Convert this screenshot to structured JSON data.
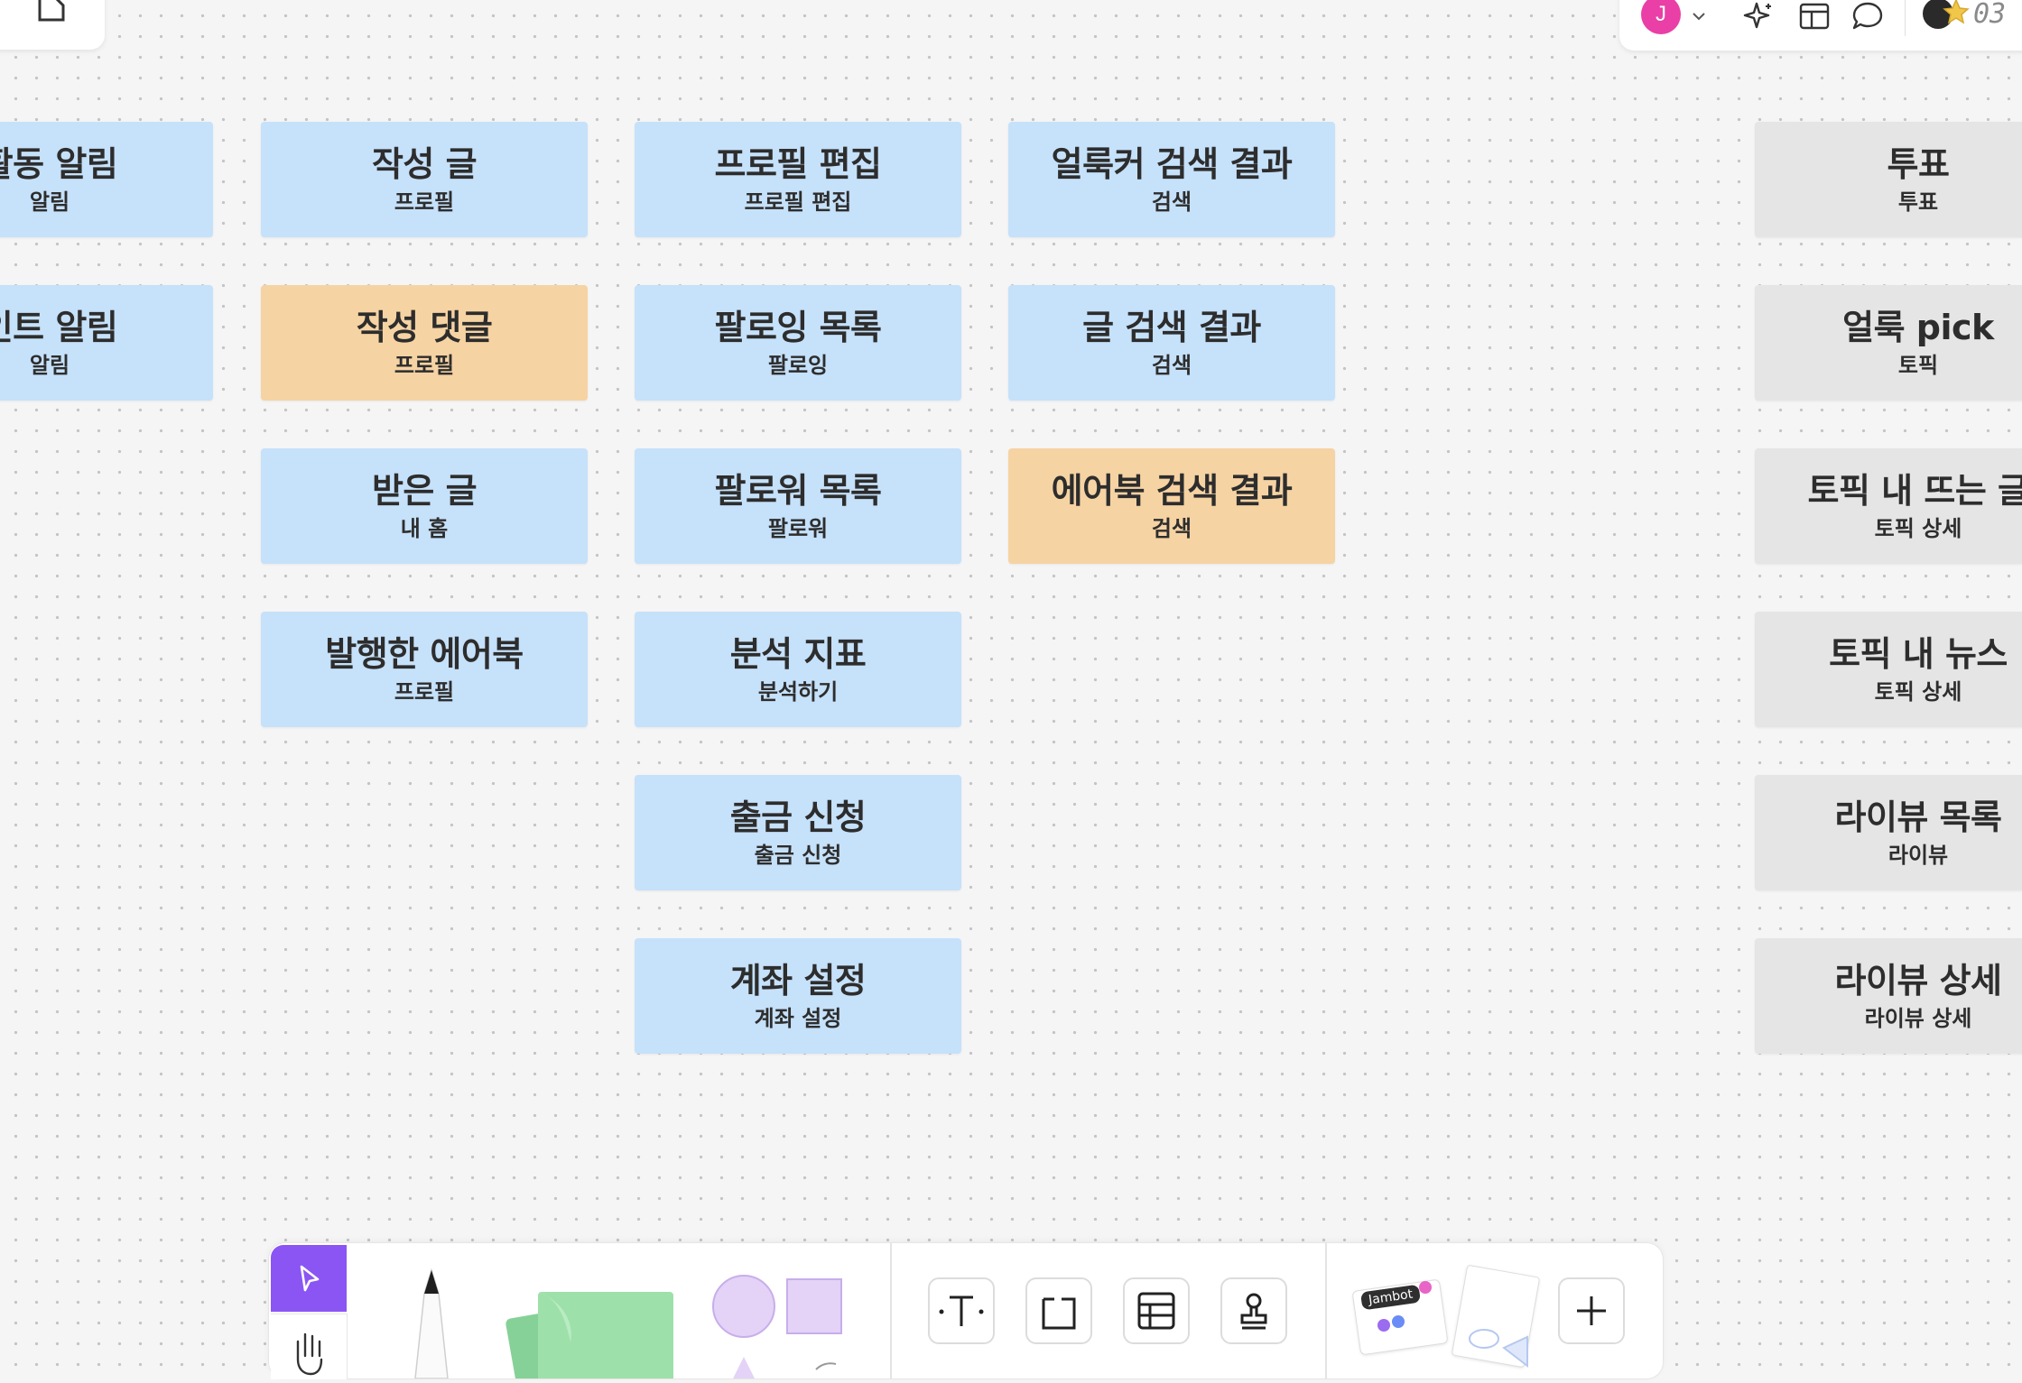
{
  "board": {
    "stickies": [
      {
        "id": "activity-alert",
        "title": "활동 알림",
        "sub": "알림",
        "color": "blue"
      },
      {
        "id": "point-alert",
        "title": "인트 알림",
        "sub": "알림",
        "color": "blue"
      },
      {
        "id": "written-post",
        "title": "작성 글",
        "sub": "프로필",
        "color": "blue"
      },
      {
        "id": "written-comment",
        "title": "작성 댓글",
        "sub": "프로필",
        "color": "orange"
      },
      {
        "id": "received-post",
        "title": "받은 글",
        "sub": "내 홈",
        "color": "blue"
      },
      {
        "id": "published-airbook",
        "title": "발행한 에어북",
        "sub": "프로필",
        "color": "blue"
      },
      {
        "id": "profile-edit",
        "title": "프로필 편집",
        "sub": "프로필 편집",
        "color": "blue"
      },
      {
        "id": "following-list",
        "title": "팔로잉 목록",
        "sub": "팔로잉",
        "color": "blue"
      },
      {
        "id": "follower-list",
        "title": "팔로워 목록",
        "sub": "팔로워",
        "color": "blue"
      },
      {
        "id": "analytics",
        "title": "분석 지표",
        "sub": "분석하기",
        "color": "blue"
      },
      {
        "id": "withdraw-request",
        "title": "출금 신청",
        "sub": "출금 신청",
        "color": "blue"
      },
      {
        "id": "account-settings",
        "title": "계좌 설정",
        "sub": "계좌 설정",
        "color": "blue"
      },
      {
        "id": "ollooker-search",
        "title": "얼룩커 검색 결과",
        "sub": "검색",
        "color": "blue"
      },
      {
        "id": "post-search",
        "title": "글 검색 결과",
        "sub": "검색",
        "color": "blue"
      },
      {
        "id": "airbook-search",
        "title": "에어북 검색 결과",
        "sub": "검색",
        "color": "orange"
      },
      {
        "id": "vote",
        "title": "투표",
        "sub": "투표",
        "color": "gray"
      },
      {
        "id": "ollook-pick",
        "title": "얼룩 pick",
        "sub": "토픽",
        "color": "gray"
      },
      {
        "id": "topic-trending",
        "title": "토픽 내 뜨는 글",
        "sub": "토픽 상세",
        "color": "gray"
      },
      {
        "id": "topic-news",
        "title": "토픽 내 뉴스",
        "sub": "토픽 상세",
        "color": "gray"
      },
      {
        "id": "liview-list",
        "title": "라이뷰 목록",
        "sub": "라이뷰",
        "color": "gray"
      },
      {
        "id": "liview-detail",
        "title": "라이뷰 상세",
        "sub": "라이뷰 상세",
        "color": "gray"
      }
    ]
  },
  "header": {
    "avatar_initial": "J",
    "timer_text": "03"
  },
  "toolbar": {
    "sticker_label": "Jambot"
  },
  "colors": {
    "sticky_blue": "#c6e1fa",
    "sticky_orange": "#f6d3a3",
    "sticky_gray": "#e5e5e5",
    "accent": "#8b55f4",
    "avatar": "#e93fa6"
  }
}
